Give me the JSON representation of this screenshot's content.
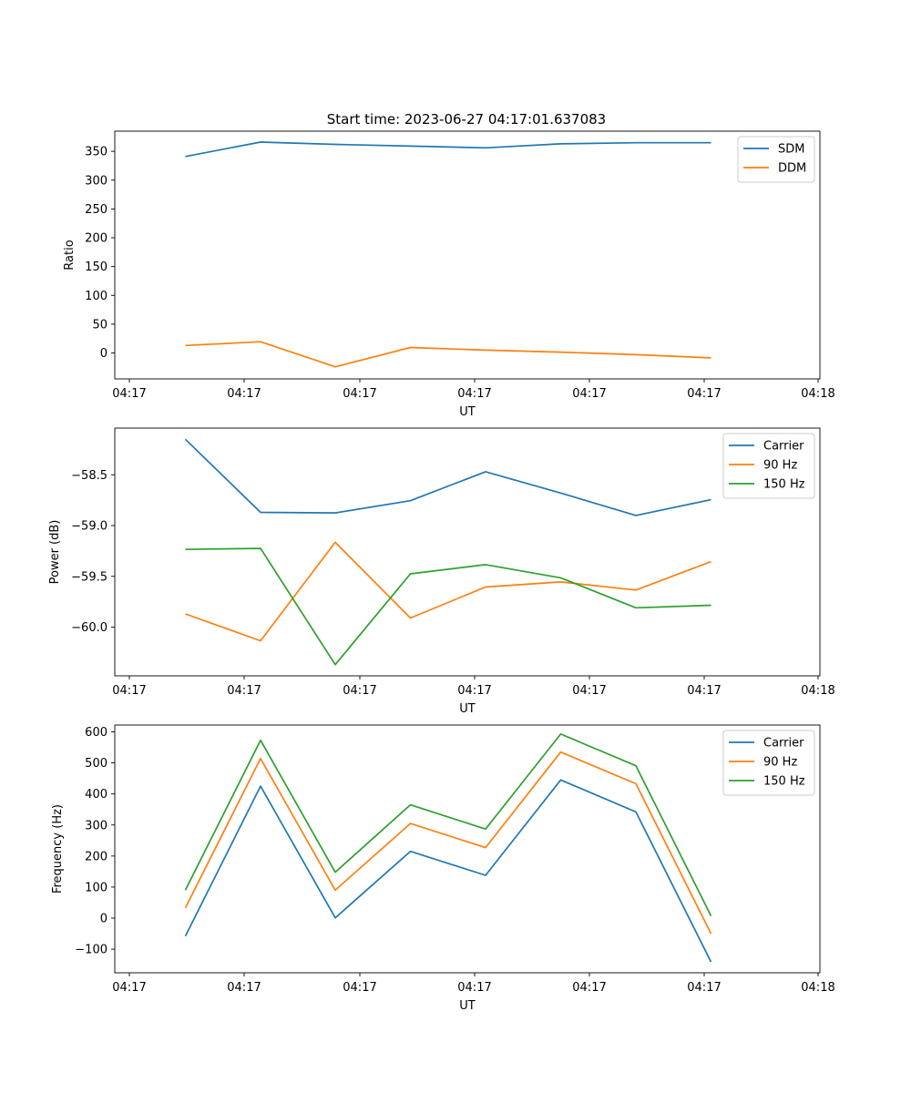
{
  "figure": {
    "title": "Start time: 2023-06-27 04:17:01.637083"
  },
  "chart_data": [
    {
      "type": "line",
      "xlabel": "UT",
      "ylabel": "Ratio",
      "x_tick_labels": [
        "04:17",
        "04:17",
        "04:17",
        "04:17",
        "04:17",
        "04:17",
        "04:18"
      ],
      "y_ticks": [
        0,
        50,
        100,
        150,
        200,
        250,
        300,
        350
      ],
      "ylim": [
        -45,
        385
      ],
      "grid": false,
      "legend_position": "top-right",
      "series": [
        {
          "name": "SDM",
          "color": "#1f77b4",
          "values": [
            341,
            366,
            362,
            359,
            356,
            363,
            365,
            365
          ]
        },
        {
          "name": "DDM",
          "color": "#ff7f0e",
          "values": [
            13,
            19.5,
            -24,
            9.5,
            5,
            1.5,
            -3,
            -8.5
          ]
        }
      ]
    },
    {
      "type": "line",
      "xlabel": "UT",
      "ylabel": "Power (dB)",
      "x_tick_labels": [
        "04:17",
        "04:17",
        "04:17",
        "04:17",
        "04:17",
        "04:17",
        "04:18"
      ],
      "y_ticks": [
        -60.0,
        -59.5,
        -59.0,
        -58.5
      ],
      "y_tick_labels": [
        "−60.0",
        "−59.5",
        "−59.0",
        "−58.5"
      ],
      "ylim": [
        -60.48,
        -58.04
      ],
      "grid": false,
      "legend_position": "top-right",
      "series": [
        {
          "name": "Carrier",
          "color": "#1f77b4",
          "values": [
            -58.15,
            -58.87,
            -58.875,
            -58.755,
            -58.47,
            -58.68,
            -58.9,
            -58.745
          ]
        },
        {
          "name": "90 Hz",
          "color": "#ff7f0e",
          "values": [
            -59.87,
            -60.135,
            -59.165,
            -59.91,
            -59.605,
            -59.555,
            -59.635,
            -59.355
          ]
        },
        {
          "name": "150 Hz",
          "color": "#2ca02c",
          "values": [
            -59.235,
            -59.225,
            -60.37,
            -59.475,
            -59.385,
            -59.515,
            -59.81,
            -59.785
          ]
        }
      ]
    },
    {
      "type": "line",
      "xlabel": "UT",
      "ylabel": "Frequency (Hz)",
      "x_tick_labels": [
        "04:17",
        "04:17",
        "04:17",
        "04:17",
        "04:17",
        "04:17",
        "04:18"
      ],
      "y_ticks": [
        -100,
        0,
        100,
        200,
        300,
        400,
        500,
        600
      ],
      "y_tick_labels": [
        "−100",
        "0",
        "100",
        "200",
        "300",
        "400",
        "500",
        "600"
      ],
      "ylim": [
        -176,
        622
      ],
      "grid": false,
      "legend_position": "top-right",
      "series": [
        {
          "name": "Carrier",
          "color": "#1f77b4",
          "values": [
            -58,
            425,
            1,
            215,
            138,
            445,
            342,
            -141
          ]
        },
        {
          "name": "90 Hz",
          "color": "#ff7f0e",
          "values": [
            33,
            514,
            90,
            305,
            227,
            535,
            433,
            -50
          ]
        },
        {
          "name": "150 Hz",
          "color": "#2ca02c",
          "values": [
            90,
            573,
            148,
            365,
            287,
            593,
            491,
            7
          ]
        }
      ]
    }
  ]
}
